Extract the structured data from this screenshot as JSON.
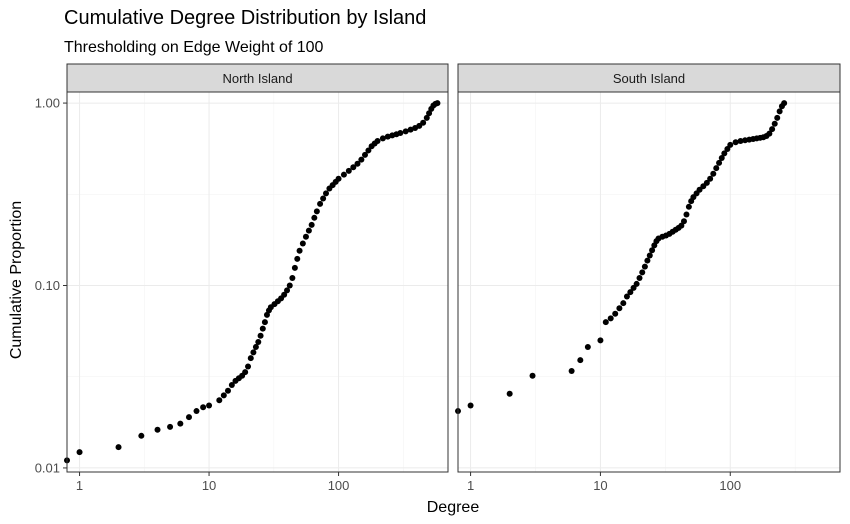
{
  "chart_data": {
    "type": "scatter",
    "title": "Cumulative Degree Distribution by Island",
    "subtitle": "Thresholding on Edge Weight of 100",
    "xlabel": "Degree",
    "ylabel": "Cumulative Proportion",
    "x_scale": "log10",
    "y_scale": "log10",
    "xlim": [
      0.8,
      700
    ],
    "ylim": [
      0.0095,
      1.15
    ],
    "x_ticks": [
      1,
      10,
      100
    ],
    "x_tick_labels": [
      "1",
      "10",
      "100"
    ],
    "y_ticks": [
      0.01,
      0.1,
      1.0
    ],
    "y_tick_labels": [
      "0.01",
      "0.10",
      "1.00"
    ],
    "grid": true,
    "legend": "none",
    "point_color": "#000000",
    "panels": [
      {
        "name": "North Island",
        "points": [
          [
            0.8,
            0.011
          ],
          [
            1,
            0.0122
          ],
          [
            2,
            0.013
          ],
          [
            3,
            0.015
          ],
          [
            4,
            0.0162
          ],
          [
            5,
            0.0168
          ],
          [
            6,
            0.0175
          ],
          [
            7,
            0.019
          ],
          [
            8,
            0.0205
          ],
          [
            9,
            0.0215
          ],
          [
            10,
            0.022
          ],
          [
            12,
            0.0235
          ],
          [
            13,
            0.025
          ],
          [
            14,
            0.0265
          ],
          [
            15,
            0.0285
          ],
          [
            16,
            0.03
          ],
          [
            17,
            0.031
          ],
          [
            18,
            0.032
          ],
          [
            19,
            0.0335
          ],
          [
            20,
            0.036
          ],
          [
            21,
            0.04
          ],
          [
            22,
            0.043
          ],
          [
            23,
            0.046
          ],
          [
            24,
            0.049
          ],
          [
            25,
            0.053
          ],
          [
            26,
            0.058
          ],
          [
            27,
            0.063
          ],
          [
            28,
            0.069
          ],
          [
            29,
            0.073
          ],
          [
            30,
            0.076
          ],
          [
            32,
            0.079
          ],
          [
            34,
            0.082
          ],
          [
            36,
            0.085
          ],
          [
            38,
            0.089
          ],
          [
            40,
            0.094
          ],
          [
            42,
            0.1
          ],
          [
            44,
            0.11
          ],
          [
            46,
            0.125
          ],
          [
            48,
            0.14
          ],
          [
            50,
            0.155
          ],
          [
            53,
            0.17
          ],
          [
            56,
            0.185
          ],
          [
            59,
            0.2
          ],
          [
            62,
            0.215
          ],
          [
            65,
            0.235
          ],
          [
            68,
            0.255
          ],
          [
            72,
            0.28
          ],
          [
            76,
            0.3
          ],
          [
            80,
            0.32
          ],
          [
            85,
            0.34
          ],
          [
            90,
            0.355
          ],
          [
            95,
            0.37
          ],
          [
            100,
            0.385
          ],
          [
            110,
            0.405
          ],
          [
            120,
            0.425
          ],
          [
            130,
            0.445
          ],
          [
            140,
            0.465
          ],
          [
            150,
            0.49
          ],
          [
            160,
            0.52
          ],
          [
            170,
            0.55
          ],
          [
            180,
            0.58
          ],
          [
            190,
            0.6
          ],
          [
            200,
            0.62
          ],
          [
            220,
            0.64
          ],
          [
            240,
            0.655
          ],
          [
            260,
            0.665
          ],
          [
            280,
            0.675
          ],
          [
            300,
            0.685
          ],
          [
            330,
            0.7
          ],
          [
            360,
            0.715
          ],
          [
            390,
            0.73
          ],
          [
            420,
            0.75
          ],
          [
            450,
            0.78
          ],
          [
            480,
            0.83
          ],
          [
            500,
            0.88
          ],
          [
            520,
            0.93
          ],
          [
            540,
            0.97
          ],
          [
            560,
            0.99
          ],
          [
            580,
            1.0
          ]
        ]
      },
      {
        "name": "South Island",
        "points": [
          [
            0.8,
            0.0205
          ],
          [
            1,
            0.022
          ],
          [
            2,
            0.0255
          ],
          [
            3,
            0.032
          ],
          [
            6,
            0.034
          ],
          [
            7,
            0.039
          ],
          [
            8,
            0.046
          ],
          [
            10,
            0.05
          ],
          [
            11,
            0.063
          ],
          [
            12,
            0.066
          ],
          [
            13,
            0.07
          ],
          [
            14,
            0.075
          ],
          [
            15,
            0.08
          ],
          [
            16,
            0.087
          ],
          [
            17,
            0.092
          ],
          [
            18,
            0.097
          ],
          [
            19,
            0.102
          ],
          [
            20,
            0.11
          ],
          [
            21,
            0.118
          ],
          [
            22,
            0.127
          ],
          [
            23,
            0.137
          ],
          [
            24,
            0.146
          ],
          [
            25,
            0.156
          ],
          [
            26,
            0.166
          ],
          [
            27,
            0.175
          ],
          [
            28,
            0.181
          ],
          [
            30,
            0.185
          ],
          [
            32,
            0.188
          ],
          [
            34,
            0.192
          ],
          [
            36,
            0.197
          ],
          [
            38,
            0.202
          ],
          [
            40,
            0.207
          ],
          [
            42,
            0.213
          ],
          [
            44,
            0.225
          ],
          [
            46,
            0.245
          ],
          [
            48,
            0.27
          ],
          [
            50,
            0.29
          ],
          [
            52,
            0.305
          ],
          [
            55,
            0.32
          ],
          [
            58,
            0.335
          ],
          [
            62,
            0.35
          ],
          [
            66,
            0.365
          ],
          [
            70,
            0.385
          ],
          [
            74,
            0.41
          ],
          [
            78,
            0.44
          ],
          [
            82,
            0.47
          ],
          [
            86,
            0.5
          ],
          [
            90,
            0.53
          ],
          [
            95,
            0.56
          ],
          [
            100,
            0.59
          ],
          [
            110,
            0.61
          ],
          [
            120,
            0.62
          ],
          [
            130,
            0.625
          ],
          [
            140,
            0.63
          ],
          [
            150,
            0.635
          ],
          [
            160,
            0.64
          ],
          [
            170,
            0.645
          ],
          [
            180,
            0.65
          ],
          [
            190,
            0.66
          ],
          [
            200,
            0.68
          ],
          [
            210,
            0.72
          ],
          [
            220,
            0.77
          ],
          [
            230,
            0.83
          ],
          [
            240,
            0.9
          ],
          [
            250,
            0.96
          ],
          [
            260,
            1.0
          ]
        ]
      }
    ]
  }
}
